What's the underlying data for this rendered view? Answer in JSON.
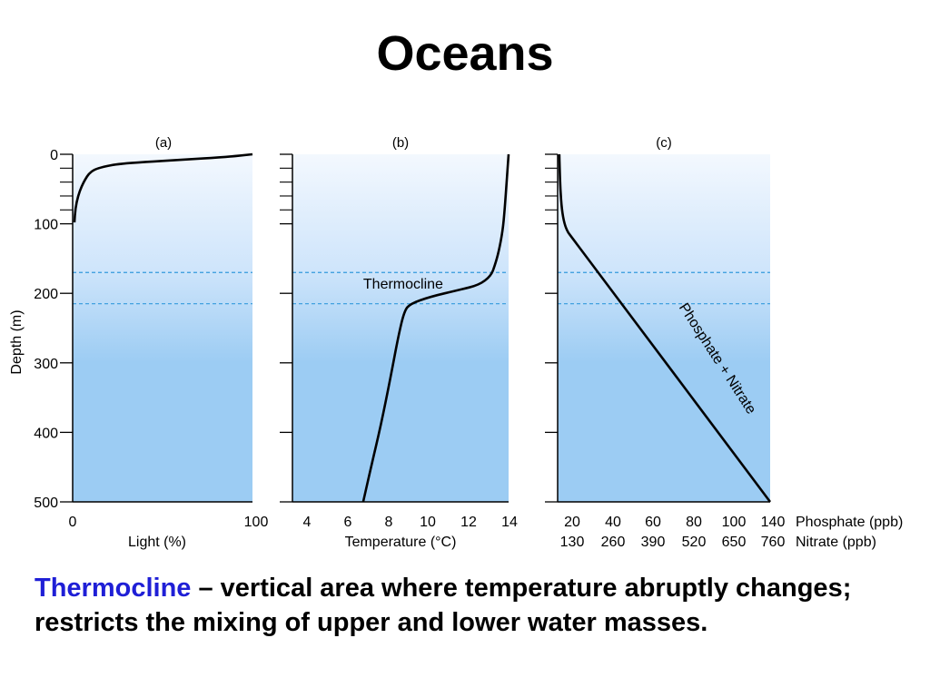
{
  "slide": {
    "title": "Oceans"
  },
  "caption": {
    "term": "Thermocline",
    "text": " – vertical area where temperature abruptly changes; restricts the mixing of upper and lower water masses."
  },
  "colors": {
    "water_top": "#f3f8fe",
    "water_mid": "#cfe5fb",
    "water_deep": "#9cccf3",
    "thermocline_line": "#3399dd",
    "term": "#1f1fd6"
  },
  "chart_data": [
    {
      "type": "line",
      "title": "(a)",
      "xlabel": "Light (%)",
      "ylabel": "Depth (m)",
      "xlim": [
        0,
        100
      ],
      "ylim": [
        0,
        500
      ],
      "y_inverted": true,
      "xticks": [
        "0",
        "100"
      ],
      "yticks": [
        "0",
        "100",
        "200",
        "300",
        "400",
        "500"
      ],
      "thermocline_depths": [
        170,
        215
      ],
      "series": [
        {
          "x": [
            100,
            85,
            60,
            40,
            25,
            17,
            12,
            9,
            7,
            5,
            3,
            1.5,
            1
          ],
          "y": [
            0,
            4,
            8,
            11,
            14,
            18,
            22,
            28,
            36,
            46,
            60,
            78,
            98
          ]
        }
      ]
    },
    {
      "type": "line",
      "title": "(b)",
      "xlabel": "Temperature (°C)",
      "ylabel": "Depth (m)",
      "xlim": [
        3,
        14
      ],
      "ylim": [
        0,
        500
      ],
      "y_inverted": true,
      "xticks": [
        "4",
        "6",
        "8",
        "10",
        "12",
        "14"
      ],
      "annotations": [
        {
          "text": "Thermocline",
          "x": 6.6,
          "y": 193
        }
      ],
      "thermocline_depths": [
        170,
        215
      ],
      "series": [
        {
          "x": [
            14,
            13.9,
            13.8,
            13.7,
            13.5,
            13.3,
            13.1,
            12.5,
            11.5,
            10,
            9,
            8.7,
            8.4,
            8,
            7.5,
            7,
            6.6
          ],
          "y": [
            0,
            40,
            80,
            110,
            140,
            160,
            175,
            188,
            195,
            205,
            215,
            225,
            260,
            320,
            390,
            450,
            500
          ]
        }
      ]
    },
    {
      "type": "line",
      "title": "(c)",
      "xlabel": "",
      "ylabel": "Depth (m)",
      "xlim": [
        14,
        140
      ],
      "ylim": [
        0,
        500
      ],
      "y_inverted": true,
      "xticks": [
        "20",
        "40",
        "60",
        "80",
        "100",
        "140"
      ],
      "xticks_secondary": [
        "130",
        "260",
        "390",
        "520",
        "650",
        "760"
      ],
      "x_axis_labels": [
        "Phosphate (ppb)",
        "Nitrate (ppb)"
      ],
      "annotations": [
        {
          "text": "Phosphate + Nitrate",
          "x": 99,
          "y": 300
        }
      ],
      "thermocline_depths": [
        170,
        215
      ],
      "series": [
        {
          "name": "Phosphate + Nitrate",
          "x": [
            15,
            15.2,
            15.6,
            16.5,
            18,
            20,
            22,
            140
          ],
          "y": [
            0,
            20,
            50,
            80,
            100,
            112,
            118,
            500
          ]
        }
      ]
    }
  ]
}
